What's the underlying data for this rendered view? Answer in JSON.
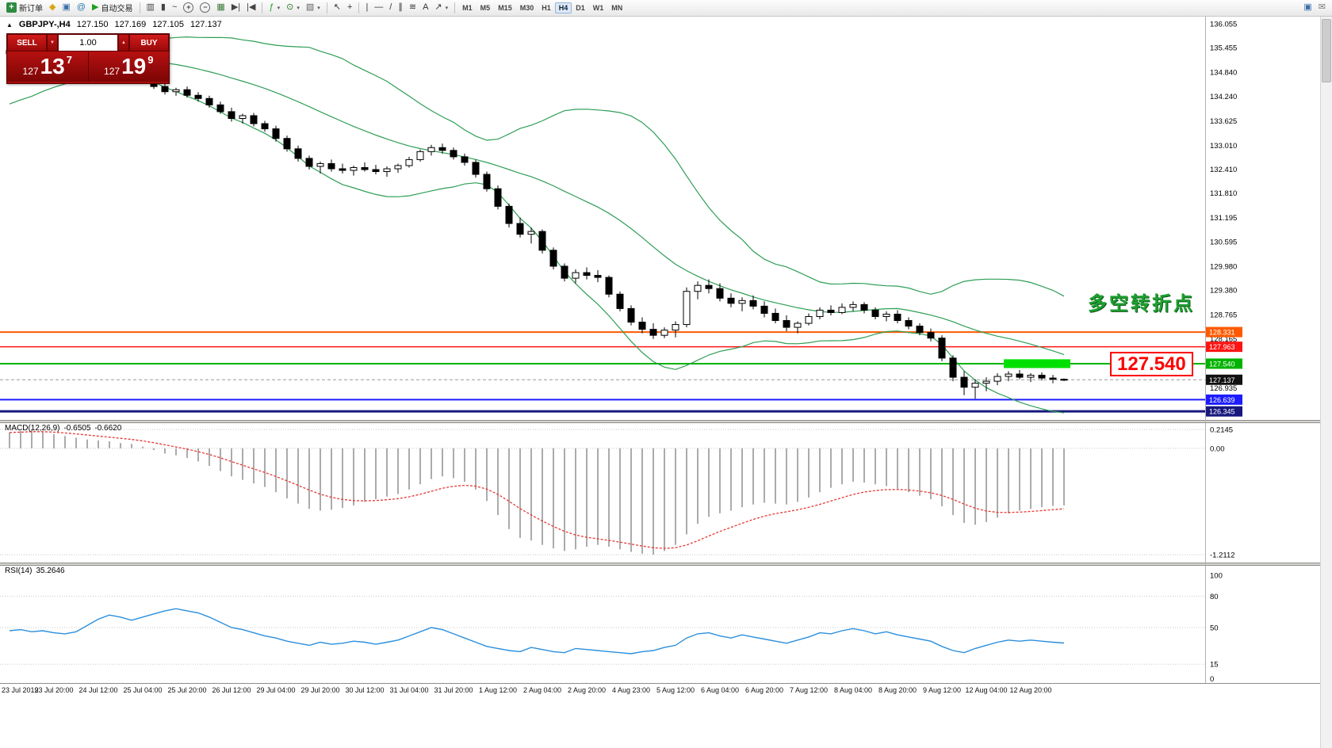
{
  "toolbar": {
    "active_timeframe": "H4",
    "groups": [
      {
        "items": [
          {
            "name": "new-order",
            "glyph": "+",
            "cls": "sq",
            "color": "#ffffff",
            "label": "新订单"
          },
          {
            "name": "market-watch",
            "glyph": "◆",
            "color": "#d9a514"
          },
          {
            "name": "navigator",
            "glyph": "▣",
            "color": "#3a6ea5"
          },
          {
            "name": "community",
            "glyph": "@",
            "color": "#2a7ab0"
          },
          {
            "name": "autotrading",
            "glyph": "▶",
            "color": "#1fa01f",
            "label": "自动交易"
          }
        ]
      },
      {
        "items": [
          {
            "name": "bar-chart",
            "glyph": "▥",
            "color": "#444444"
          },
          {
            "name": "candlestick-chart",
            "glyph": "▮",
            "color": "#444444"
          },
          {
            "name": "line-chart",
            "glyph": "~",
            "color": "#444444"
          },
          {
            "name": "zoom-in",
            "glyph": "+",
            "cls": "circ",
            "color": "#444444"
          },
          {
            "name": "zoom-out",
            "glyph": "−",
            "cls": "circ",
            "color": "#444444"
          },
          {
            "name": "tile-windows",
            "glyph": "▦",
            "color": "#3a7a3a"
          },
          {
            "name": "auto-scroll",
            "glyph": "▶|",
            "color": "#444444"
          },
          {
            "name": "chart-shift",
            "glyph": "|◀",
            "color": "#444444"
          }
        ]
      },
      {
        "items": [
          {
            "name": "indicators",
            "glyph": "ƒ",
            "color": "#1fa01f",
            "dd": true
          },
          {
            "name": "periods",
            "glyph": "⊙",
            "color": "#2a7a2a",
            "dd": true
          },
          {
            "name": "templates",
            "glyph": "▧",
            "color": "#666666",
            "dd": true
          }
        ]
      },
      {
        "items": [
          {
            "name": "cursor",
            "glyph": "↖",
            "color": "#333333"
          },
          {
            "name": "crosshair",
            "glyph": "+",
            "color": "#333333"
          }
        ]
      },
      {
        "items": [
          {
            "name": "vertical-line",
            "glyph": "|",
            "color": "#333333"
          },
          {
            "name": "horizontal-line",
            "glyph": "—",
            "color": "#333333"
          },
          {
            "name": "trendline",
            "glyph": "/",
            "color": "#333333"
          },
          {
            "name": "equidistant-channel",
            "glyph": "∥",
            "color": "#333333"
          },
          {
            "name": "fibonacci",
            "glyph": "≋",
            "color": "#333333"
          },
          {
            "name": "text-label",
            "glyph": "A",
            "color": "#333333"
          },
          {
            "name": "arrow-tools",
            "glyph": "↗",
            "color": "#333333",
            "dd": true
          }
        ]
      },
      {
        "timeframes": [
          "M1",
          "M5",
          "M15",
          "M30",
          "H1",
          "H4",
          "D1",
          "W1",
          "MN"
        ]
      },
      {
        "right": true,
        "items": [
          {
            "name": "new-chart-window",
            "glyph": "▣",
            "color": "#3a6ea5"
          },
          {
            "name": "help-chat",
            "glyph": "✉",
            "color": "#777777"
          }
        ]
      }
    ]
  },
  "symbol_info": {
    "title": "GBPJPY-,H4",
    "open": "127.150",
    "high": "127.169",
    "low": "127.105",
    "close": "127.137"
  },
  "trade_panel": {
    "sell_label": "SELL",
    "buy_label": "BUY",
    "volume": "1.00",
    "sell_price_prefix": "127",
    "sell_price_big": "13",
    "sell_price_sup": "7",
    "buy_price_prefix": "127",
    "buy_price_big": "19",
    "buy_price_sup": "9"
  },
  "annotations": {
    "turning_point_text": "多空转折点",
    "price_label_text": "127.540"
  },
  "price_axis": {
    "labels": [
      "136.055",
      "135.455",
      "134.840",
      "134.240",
      "133.625",
      "133.010",
      "132.410",
      "131.810",
      "131.195",
      "130.595",
      "129.980",
      "129.380",
      "128.765",
      "128.165",
      "126.935"
    ],
    "tags": [
      {
        "value": "128.331",
        "color": "#ff5a00"
      },
      {
        "value": "127.963",
        "color": "#ff1414"
      },
      {
        "value": "127.540",
        "color": "#00b300"
      },
      {
        "value": "127.137",
        "color": "#111111",
        "current": true
      },
      {
        "value": "126.639",
        "color": "#1c1cff"
      },
      {
        "value": "126.345",
        "color": "#17177e"
      }
    ]
  },
  "time_axis": {
    "step": 4,
    "labels": [
      "23 Jul 2019",
      "23 Jul 20:00",
      "24 Jul 12:00",
      "25 Jul 04:00",
      "25 Jul 20:00",
      "26 Jul 12:00",
      "29 Jul 04:00",
      "29 Jul 20:00",
      "30 Jul 12:00",
      "31 Jul 04:00",
      "31 Jul 20:00",
      "1 Aug 12:00",
      "2 Aug 04:00",
      "2 Aug 20:00",
      "4 Aug 23:00",
      "5 Aug 12:00",
      "6 Aug 04:00",
      "6 Aug 20:00",
      "7 Aug 12:00",
      "8 Aug 04:00",
      "8 Aug 20:00",
      "9 Aug 12:00",
      "12 Aug 04:00",
      "12 Aug 20:00"
    ]
  },
  "chart_data": {
    "type": "candlestick",
    "symbol": "GBPJPY-",
    "timeframe": "H4",
    "ylim": [
      126.17,
      136.17
    ],
    "current_price": 127.137,
    "ohlc": [
      [
        135.3,
        135.45,
        135.22,
        135.38
      ],
      [
        135.38,
        135.48,
        135.3,
        135.35
      ],
      [
        135.35,
        135.42,
        135.25,
        135.28
      ],
      [
        135.28,
        135.36,
        135.18,
        135.32
      ],
      [
        135.32,
        135.38,
        135.2,
        135.24
      ],
      [
        135.24,
        135.3,
        135.1,
        135.15
      ],
      [
        135.15,
        135.22,
        135.0,
        135.05
      ],
      [
        135.05,
        135.12,
        134.9,
        134.95
      ],
      [
        134.95,
        135.18,
        134.92,
        135.1
      ],
      [
        135.1,
        135.15,
        134.85,
        134.9
      ],
      [
        134.9,
        135.0,
        134.75,
        134.82
      ],
      [
        134.82,
        134.95,
        134.78,
        134.88
      ],
      [
        134.88,
        134.92,
        134.55,
        134.6
      ],
      [
        134.6,
        134.7,
        134.42,
        134.48
      ],
      [
        134.48,
        134.55,
        134.28,
        134.35
      ],
      [
        134.35,
        134.45,
        134.25,
        134.4
      ],
      [
        134.4,
        134.48,
        134.2,
        134.26
      ],
      [
        134.26,
        134.34,
        134.1,
        134.18
      ],
      [
        134.18,
        134.25,
        133.95,
        134.02
      ],
      [
        134.02,
        134.1,
        133.8,
        133.85
      ],
      [
        133.85,
        133.95,
        133.6,
        133.68
      ],
      [
        133.68,
        133.8,
        133.55,
        133.75
      ],
      [
        133.75,
        133.82,
        133.48,
        133.55
      ],
      [
        133.55,
        133.62,
        133.35,
        133.42
      ],
      [
        133.42,
        133.5,
        133.1,
        133.18
      ],
      [
        133.18,
        133.25,
        132.85,
        132.92
      ],
      [
        132.92,
        133.0,
        132.6,
        132.68
      ],
      [
        132.68,
        132.75,
        132.4,
        132.48
      ],
      [
        132.48,
        132.6,
        132.3,
        132.55
      ],
      [
        132.55,
        132.65,
        132.35,
        132.42
      ],
      [
        132.42,
        132.55,
        132.3,
        132.38
      ],
      [
        132.38,
        132.5,
        132.25,
        132.45
      ],
      [
        132.45,
        132.58,
        132.35,
        132.4
      ],
      [
        132.4,
        132.52,
        132.28,
        132.35
      ],
      [
        132.35,
        132.48,
        132.22,
        132.42
      ],
      [
        132.42,
        132.55,
        132.32,
        132.5
      ],
      [
        132.5,
        132.72,
        132.45,
        132.65
      ],
      [
        132.65,
        132.9,
        132.6,
        132.85
      ],
      [
        132.85,
        133.02,
        132.75,
        132.95
      ],
      [
        132.95,
        133.05,
        132.8,
        132.88
      ],
      [
        132.88,
        132.95,
        132.65,
        132.72
      ],
      [
        132.72,
        132.8,
        132.5,
        132.58
      ],
      [
        132.58,
        132.65,
        132.2,
        132.28
      ],
      [
        132.28,
        132.35,
        131.85,
        131.92
      ],
      [
        131.92,
        132.0,
        131.4,
        131.48
      ],
      [
        131.48,
        131.55,
        130.95,
        131.05
      ],
      [
        131.05,
        131.2,
        130.7,
        130.78
      ],
      [
        130.78,
        130.95,
        130.55,
        130.85
      ],
      [
        130.85,
        130.9,
        130.3,
        130.38
      ],
      [
        130.38,
        130.45,
        129.9,
        129.98
      ],
      [
        129.98,
        130.05,
        129.6,
        129.68
      ],
      [
        129.68,
        129.9,
        129.55,
        129.82
      ],
      [
        129.82,
        129.95,
        129.65,
        129.75
      ],
      [
        129.75,
        129.88,
        129.58,
        129.7
      ],
      [
        129.7,
        129.75,
        129.2,
        129.28
      ],
      [
        129.28,
        129.35,
        128.85,
        128.92
      ],
      [
        128.92,
        129.0,
        128.5,
        128.58
      ],
      [
        128.58,
        128.7,
        128.3,
        128.4
      ],
      [
        128.4,
        128.55,
        128.16,
        128.25
      ],
      [
        128.25,
        128.45,
        128.18,
        128.38
      ],
      [
        128.38,
        128.6,
        128.2,
        128.52
      ],
      [
        128.52,
        129.45,
        128.45,
        129.35
      ],
      [
        129.35,
        129.6,
        129.15,
        129.5
      ],
      [
        129.5,
        129.65,
        129.3,
        129.42
      ],
      [
        129.42,
        129.55,
        129.1,
        129.18
      ],
      [
        129.18,
        129.3,
        128.95,
        129.05
      ],
      [
        129.05,
        129.2,
        128.85,
        129.12
      ],
      [
        129.12,
        129.25,
        128.9,
        128.98
      ],
      [
        128.98,
        129.1,
        128.7,
        128.8
      ],
      [
        128.8,
        128.92,
        128.55,
        128.62
      ],
      [
        128.62,
        128.75,
        128.35,
        128.45
      ],
      [
        128.45,
        128.6,
        128.3,
        128.55
      ],
      [
        128.55,
        128.8,
        128.5,
        128.72
      ],
      [
        128.72,
        128.95,
        128.65,
        128.88
      ],
      [
        128.88,
        129.0,
        128.75,
        128.82
      ],
      [
        128.82,
        129.05,
        128.78,
        128.95
      ],
      [
        128.95,
        129.1,
        128.85,
        129.02
      ],
      [
        129.02,
        129.08,
        128.8,
        128.88
      ],
      [
        128.88,
        128.95,
        128.65,
        128.72
      ],
      [
        128.72,
        128.85,
        128.6,
        128.78
      ],
      [
        128.78,
        128.88,
        128.55,
        128.62
      ],
      [
        128.62,
        128.7,
        128.4,
        128.48
      ],
      [
        128.48,
        128.55,
        128.25,
        128.32
      ],
      [
        128.32,
        128.42,
        128.1,
        128.18
      ],
      [
        128.18,
        128.25,
        127.6,
        127.68
      ],
      [
        127.68,
        127.75,
        127.1,
        127.2
      ],
      [
        127.2,
        127.35,
        126.75,
        126.95
      ],
      [
        126.95,
        127.15,
        126.66,
        127.05
      ],
      [
        127.05,
        127.2,
        126.85,
        127.1
      ],
      [
        127.1,
        127.3,
        127.0,
        127.22
      ],
      [
        127.22,
        127.35,
        127.1,
        127.28
      ],
      [
        127.28,
        127.38,
        127.15,
        127.2
      ],
      [
        127.2,
        127.3,
        127.08,
        127.25
      ],
      [
        127.25,
        127.32,
        127.12,
        127.18
      ],
      [
        127.18,
        127.26,
        127.05,
        127.15
      ],
      [
        127.15,
        127.169,
        127.105,
        127.137
      ]
    ],
    "hlines": [
      {
        "price": 128.331,
        "color": "#ff5a00",
        "width": 2
      },
      {
        "price": 127.963,
        "color": "#ff1414",
        "width": 1.5
      },
      {
        "price": 127.54,
        "color": "#00b300",
        "width": 2
      },
      {
        "price": 126.639,
        "color": "#1c1cff",
        "width": 2
      },
      {
        "price": 126.345,
        "color": "#17177e",
        "width": 3
      }
    ],
    "annotation_bar": {
      "start_index": 90,
      "end_index": 95,
      "top_price": 127.65,
      "bottom_price": 127.43,
      "color": "#00e000"
    },
    "indicators": {
      "bollinger": {
        "period": 20,
        "deviation": 2,
        "color": "#2e9e55",
        "seed_closes": [
          134.05,
          134.15,
          134.3,
          134.22,
          134.4,
          134.52,
          134.45,
          134.62,
          134.78,
          134.7,
          134.88,
          135.0,
          134.92,
          135.1,
          135.22,
          135.15,
          135.3,
          135.42,
          135.35,
          135.32
        ]
      },
      "macd": {
        "label": "MACD(12,26,9)",
        "main_value": "-0.6505",
        "signal_value": "-0.6620",
        "range": [
          -1.2112,
          0.2145
        ],
        "axis_labels": [
          "0.2145",
          "0.00",
          "-1.2112"
        ],
        "histogram": [
          0.18,
          0.2,
          0.21,
          0.19,
          0.16,
          0.14,
          0.12,
          0.1,
          0.09,
          0.08,
          0.06,
          0.05,
          0.02,
          -0.02,
          -0.06,
          -0.08,
          -0.11,
          -0.15,
          -0.2,
          -0.26,
          -0.32,
          -0.36,
          -0.4,
          -0.44,
          -0.5,
          -0.57,
          -0.63,
          -0.69,
          -0.71,
          -0.7,
          -0.68,
          -0.65,
          -0.61,
          -0.58,
          -0.55,
          -0.52,
          -0.47,
          -0.41,
          -0.35,
          -0.32,
          -0.34,
          -0.38,
          -0.47,
          -0.6,
          -0.76,
          -0.92,
          -1.02,
          -1.05,
          -1.1,
          -1.14,
          -1.17,
          -1.15,
          -1.12,
          -1.1,
          -1.12,
          -1.15,
          -1.18,
          -1.2,
          -1.21,
          -1.17,
          -1.1,
          -0.98,
          -0.86,
          -0.78,
          -0.74,
          -0.71,
          -0.67,
          -0.64,
          -0.62,
          -0.63,
          -0.64,
          -0.61,
          -0.56,
          -0.5,
          -0.45,
          -0.41,
          -0.38,
          -0.39,
          -0.41,
          -0.43,
          -0.46,
          -0.5,
          -0.54,
          -0.58,
          -0.66,
          -0.76,
          -0.85,
          -0.87,
          -0.84,
          -0.79,
          -0.74,
          -0.71,
          -0.69,
          -0.67,
          -0.655,
          -0.6505
        ]
      },
      "rsi": {
        "label": "RSI(14)",
        "value": "35.2646",
        "range": [
          0,
          100
        ],
        "levels": [
          80,
          50,
          15
        ],
        "axis_labels": [
          "100",
          "80",
          "50",
          "15",
          "0"
        ],
        "values": [
          47,
          48,
          46,
          47,
          45,
          44,
          46,
          52,
          58,
          62,
          60,
          57,
          60,
          63,
          66,
          68,
          66,
          64,
          60,
          55,
          50,
          48,
          45,
          42,
          40,
          37,
          35,
          33,
          36,
          34,
          35,
          37,
          36,
          34,
          36,
          38,
          42,
          46,
          50,
          48,
          44,
          40,
          36,
          32,
          30,
          28,
          27,
          31,
          29,
          27,
          26,
          30,
          29,
          28,
          27,
          26,
          25,
          27,
          28,
          31,
          33,
          40,
          44,
          45,
          42,
          40,
          43,
          41,
          39,
          37,
          35,
          38,
          41,
          45,
          44,
          47,
          49,
          47,
          44,
          46,
          43,
          41,
          39,
          37,
          32,
          28,
          26,
          30,
          33,
          36,
          38,
          37,
          38,
          37,
          36,
          35.26
        ]
      }
    }
  }
}
